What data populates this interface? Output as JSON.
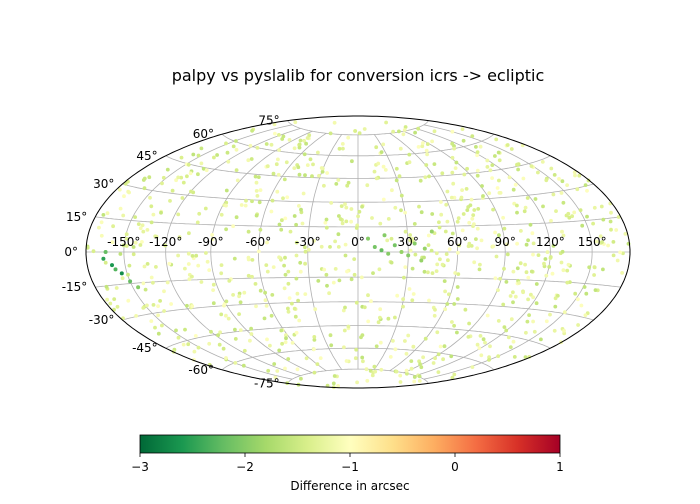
{
  "chart_data": {
    "type": "scatter",
    "projection": "hammer",
    "title": "palpy vs pyslalib for conversion icrs -> ecliptic",
    "grid": true,
    "lon_ticks": [
      -150,
      -120,
      -90,
      -60,
      -30,
      0,
      30,
      60,
      90,
      120,
      150
    ],
    "lat_ticks": [
      -75,
      -60,
      -45,
      -30,
      -15,
      0,
      15,
      30,
      45,
      60,
      75
    ],
    "lon_tick_labels": [
      "-150°",
      "-120°",
      "-90°",
      "-60°",
      "-30°",
      "0°",
      "30°",
      "60°",
      "90°",
      "120°",
      "150°"
    ],
    "lat_tick_labels": [
      "-75°",
      "-60°",
      "-45°",
      "-30°",
      "-15°",
      "0°",
      "15°",
      "30°",
      "45°",
      "60°",
      "75°"
    ],
    "colorbar": {
      "label": "Difference in arcsec",
      "colormap": "RdYlGn_r",
      "range": [
        -3,
        1
      ],
      "ticks": [
        -3,
        -2,
        -1,
        0,
        1
      ],
      "tick_labels": [
        "−3",
        "−2",
        "−1",
        "0",
        "1"
      ]
    },
    "background_point_value_range": [
      -1.6,
      -1.0
    ],
    "highlighted_points": [
      {
        "lon": -166,
        "lat": -3,
        "value": -2.5
      },
      {
        "lon": -160,
        "lat": -6,
        "value": -2.6
      },
      {
        "lon": -158,
        "lat": -8,
        "value": -2.3
      },
      {
        "lon": -154,
        "lat": -10,
        "value": -2.7
      },
      {
        "lon": -150,
        "lat": -14,
        "value": -2.2
      },
      {
        "lon": -164,
        "lat": 0,
        "value": -2.2
      },
      {
        "lon": -146,
        "lat": -17,
        "value": -2.0
      },
      {
        "lon": 6,
        "lat": 8,
        "value": -2.0
      },
      {
        "lon": 10,
        "lat": 3,
        "value": -2.1
      },
      {
        "lon": 14,
        "lat": 1,
        "value": -2.2
      },
      {
        "lon": 18,
        "lat": -1,
        "value": -2.0
      },
      {
        "lon": 22,
        "lat": 4,
        "value": -2.1
      },
      {
        "lon": 26,
        "lat": 0,
        "value": -1.9
      },
      {
        "lon": 30,
        "lat": -2,
        "value": -2.0
      },
      {
        "lon": 34,
        "lat": 5,
        "value": -2.0
      },
      {
        "lon": 40,
        "lat": 2,
        "value": -1.9
      },
      {
        "lon": 38,
        "lat": -5,
        "value": -1.9
      },
      {
        "lon": 16,
        "lat": 10,
        "value": -2.0
      },
      {
        "lon": 45,
        "lat": 12,
        "value": -1.9
      }
    ]
  }
}
